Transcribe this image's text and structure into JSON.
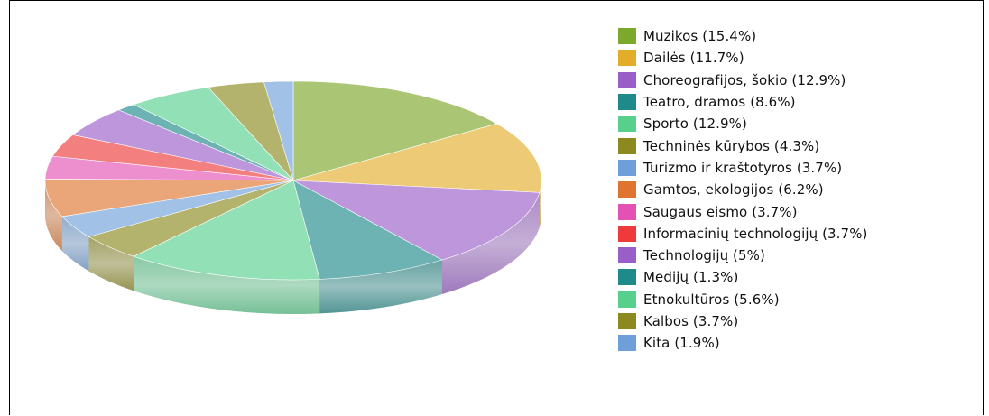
{
  "chart_data": {
    "type": "pie",
    "title": "",
    "legend_position": "right",
    "style": "3d",
    "series": [
      {
        "label": "Muzikos (15.4%)",
        "value": 15.4,
        "color": "#7ca82b"
      },
      {
        "label": "Dailės (11.7%)",
        "value": 11.7,
        "color": "#e3ad2b"
      },
      {
        "label": "Choreografijos, šokio (12.9%)",
        "value": 12.9,
        "color": "#9a5ec9"
      },
      {
        "label": "Teatro, dramos (8.6%)",
        "value": 8.6,
        "color": "#1e8a8a"
      },
      {
        "label": "Sporto (12.9%)",
        "value": 12.9,
        "color": "#58d08d"
      },
      {
        "label": "Techninės kūrybos (4.3%)",
        "value": 4.3,
        "color": "#8c8a1f"
      },
      {
        "label": "Turizmo ir kraštotyros (3.7%)",
        "value": 3.7,
        "color": "#6f9fd8"
      },
      {
        "label": "Gamtos, ekologijos (6.2%)",
        "value": 6.2,
        "color": "#df7430"
      },
      {
        "label": "Saugaus eismo (3.7%)",
        "value": 3.7,
        "color": "#e351b5"
      },
      {
        "label": "Informacinių technologijų (3.7%)",
        "value": 3.7,
        "color": "#ee3a3a"
      },
      {
        "label": "Technologijų (5%)",
        "value": 5.0,
        "color": "#9a5ec9"
      },
      {
        "label": "Medijų (1.3%)",
        "value": 1.3,
        "color": "#1e8a8a"
      },
      {
        "label": "Etnokultūros (5.6%)",
        "value": 5.6,
        "color": "#58d08d"
      },
      {
        "label": "Kalbos (3.7%)",
        "value": 3.7,
        "color": "#8c8a1f"
      },
      {
        "label": "Kita (1.9%)",
        "value": 1.9,
        "color": "#6f9fd8"
      }
    ]
  }
}
